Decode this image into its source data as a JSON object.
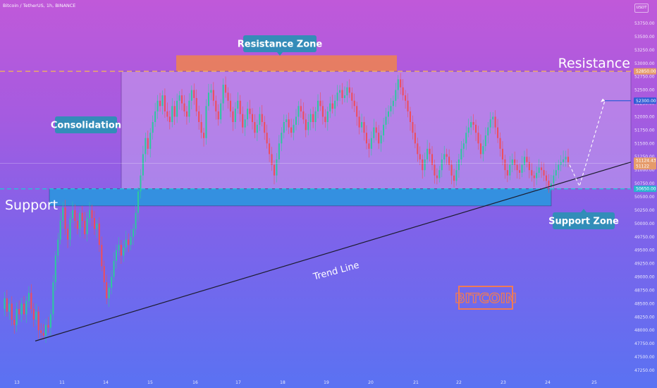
{
  "header": {
    "symbol_line": "Bitcoin / TetherUS, 1h, BINANCE",
    "currency_badge": "USDT"
  },
  "annotations": {
    "resistance_zone": "Resistance Zone",
    "consolidation": "Consolidation",
    "resistance": "Resistance",
    "support": "Support",
    "support_zone": "Support Zone",
    "trend_line": "Trend Line",
    "watermark": "BITCOIN"
  },
  "colors": {
    "resistance_zone": "#f0844e",
    "support_zone": "#2b96e0",
    "callout_bg": "#2d8fb6",
    "dashed_level": "#e9a86b",
    "candle_up": "#2ec7a0",
    "candle_down": "#ee4d5c",
    "trend_line": "#1c1c2e",
    "price_tag": "#e59b6b",
    "target_tag": "#2f5dd6",
    "watermark": "#f07a55"
  },
  "chart_data": {
    "type": "candlestick",
    "title": "Bitcoin / TetherUS, 1h, BINANCE",
    "x_tick_labels": [
      "13",
      "11",
      "14",
      "15",
      "16",
      "17",
      "18",
      "19",
      "20",
      "21",
      "22",
      "23",
      "24",
      "25"
    ],
    "y_tick_labels": [
      "53750.00",
      "53500.00",
      "53250.00",
      "53000.00",
      "52750.00",
      "52500.00",
      "52250.00",
      "52000.00",
      "51750.00",
      "51500.00",
      "51250.00",
      "51000.00",
      "50750.00",
      "50500.00",
      "50250.00",
      "50000.00",
      "49750.00",
      "49500.00",
      "49250.00",
      "49000.00",
      "48750.00",
      "48500.00",
      "48250.00",
      "48000.00",
      "47750.00",
      "47500.00",
      "47250.00"
    ],
    "y_range": [
      47250,
      53750
    ],
    "price_tags": [
      "52850.00",
      "52300.00",
      "51124.43",
      "51122",
      "50650.00"
    ],
    "levels": {
      "resistance": 52850,
      "support": 50650,
      "target": 52300,
      "last_price": 51124.43
    },
    "zones": [
      {
        "name": "Resistance Zone",
        "from": 52850,
        "to": 53150
      },
      {
        "name": "Support Zone",
        "from": 50330,
        "to": 50650
      },
      {
        "name": "Consolidation",
        "from": 50650,
        "to": 52850
      }
    ],
    "trend_line": {
      "from": 47800,
      "to": 51150
    },
    "price_path": [
      48400,
      48600,
      48350,
      48500,
      48200,
      48100,
      48400,
      48300,
      48500,
      48300,
      48550,
      48700,
      48400,
      48200,
      48350,
      48000,
      47950,
      47900,
      48100,
      48050,
      48300,
      48900,
      49400,
      49700,
      50050,
      50300,
      49900,
      49700,
      50100,
      50250,
      50050,
      49900,
      50200,
      50050,
      49800,
      50100,
      50250,
      50100,
      49900,
      50000,
      49600,
      49200,
      48900,
      48600,
      48800,
      49000,
      49300,
      49500,
      49600,
      49400,
      49550,
      49700,
      49600,
      49750,
      49900,
      50200,
      50600,
      50900,
      51300,
      51600,
      51400,
      51700,
      51900,
      52100,
      52300,
      52200,
      52400,
      52100,
      52000,
      51900,
      52200,
      52000,
      52300,
      52400,
      52250,
      52100,
      52000,
      52300,
      52500,
      52350,
      52100,
      51900,
      51700,
      51600,
      52200,
      52450,
      52500,
      52300,
      52100,
      51950,
      52250,
      52600,
      52450,
      52300,
      52100,
      51900,
      52150,
      52300,
      52050,
      51800,
      51950,
      52150,
      52050,
      51900,
      51700,
      51850,
      52050,
      51900,
      51700,
      51500,
      51300,
      51100,
      50900,
      51200,
      51500,
      51700,
      51900,
      51950,
      51800,
      51700,
      51850,
      52000,
      52200,
      52100,
      51950,
      51750,
      51900,
      52050,
      51900,
      52100,
      52300,
      52200,
      52000,
      51900,
      52100,
      52250,
      52150,
      52300,
      52450,
      52500,
      52350,
      52400,
      52550,
      52450,
      52300,
      52200,
      52000,
      51800,
      51900,
      51700,
      51500,
      51400,
      51600,
      51800,
      51700,
      51500,
      51650,
      51850,
      52000,
      52100,
      52200,
      52300,
      52500,
      52700,
      52550,
      52400,
      52300,
      52100,
      51900,
      51700,
      51500,
      51300,
      51200,
      51000,
      51200,
      51400,
      51300,
      51100,
      50900,
      50850,
      51000,
      51200,
      51300,
      51250,
      51100,
      50900,
      50800,
      51000,
      51200,
      51400,
      51500,
      51700,
      51800,
      51900,
      51850,
      51700,
      51500,
      51300,
      51450,
      51650,
      51800,
      51950,
      52000,
      51800,
      51600,
      51400,
      51200,
      51000,
      50900,
      51100,
      51200,
      51100,
      51000,
      50950,
      51100,
      51250,
      51150,
      51000,
      50900,
      50850,
      50950,
      51050,
      51000,
      50900,
      50800,
      50700,
      50750,
      50900,
      51000,
      51100,
      51150,
      51200,
      51250,
      51150
    ]
  }
}
